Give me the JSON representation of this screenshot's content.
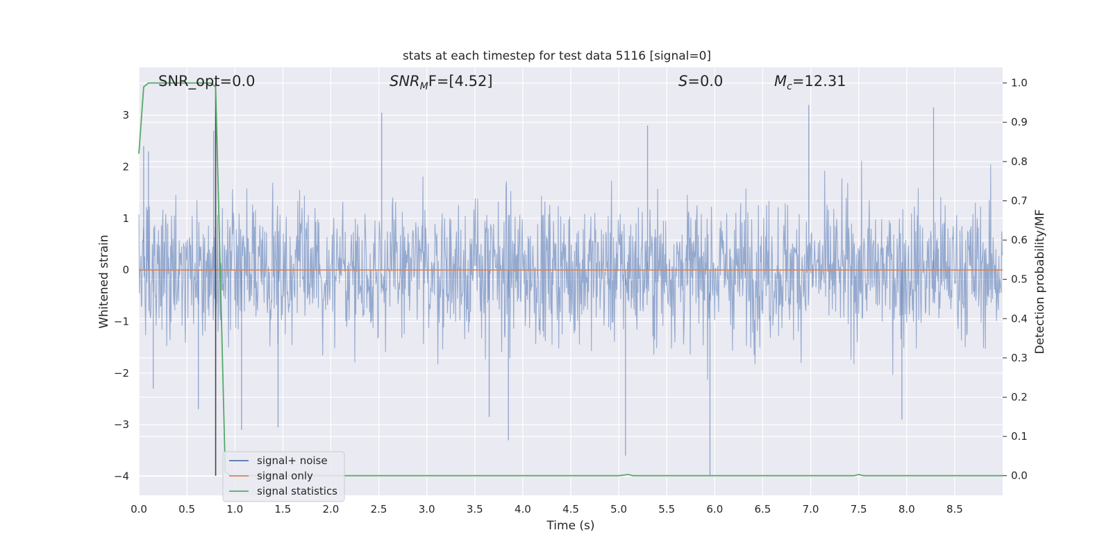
{
  "chart_data": {
    "type": "line",
    "title": "stats at each timestep for test data 5116 [signal=0]",
    "xlabel": "Time (s)",
    "ylabel": "Whitened strain",
    "y2label": "Detection probability/MF",
    "xlim": [
      0.0,
      9.0
    ],
    "ylim": [
      -4.37,
      3.93
    ],
    "y2lim": [
      -0.05,
      1.04
    ],
    "x_ticks": [
      "0.0",
      "0.5",
      "1.0",
      "1.5",
      "2.0",
      "2.5",
      "3.0",
      "3.5",
      "4.0",
      "4.5",
      "5.0",
      "5.5",
      "6.0",
      "6.5",
      "7.0",
      "7.5",
      "8.0",
      "8.5"
    ],
    "y_ticks": [
      "3",
      "2",
      "1",
      "0",
      "−1",
      "−2",
      "−3",
      "−4"
    ],
    "y2_ticks": [
      "1.0",
      "0.9",
      "0.8",
      "0.7",
      "0.6",
      "0.5",
      "0.4",
      "0.3",
      "0.2",
      "0.1",
      "0.0"
    ],
    "grid": true,
    "legend_position": "lower-left",
    "annotations": {
      "snr_opt": "SNR_opt=0.0",
      "snr_mf_base": "SNR",
      "snr_mf_sub": "M",
      "snr_mf_rest": "F=[4.52]",
      "s_base": "S",
      "s_rest": "=0.0",
      "mc_base": "M",
      "mc_sub": "c",
      "mc_rest": "=12.31"
    },
    "series": [
      {
        "name": "signal+ noise",
        "color": "#4c72b0",
        "description_units": "whitened strain, dense noise roughly within ±1.5 with peaks to about ±3",
        "notable_peaks": [
          {
            "x": 0.05,
            "y": 2.4
          },
          {
            "x": 0.1,
            "y": 2.3
          },
          {
            "x": 0.15,
            "y": -2.3
          },
          {
            "x": 0.78,
            "y": 2.7
          },
          {
            "x": 0.62,
            "y": -2.7
          },
          {
            "x": 1.07,
            "y": -3.1
          },
          {
            "x": 1.45,
            "y": -3.05
          },
          {
            "x": 2.53,
            "y": 3.05
          },
          {
            "x": 3.65,
            "y": -2.85
          },
          {
            "x": 3.85,
            "y": -3.3
          },
          {
            "x": 5.07,
            "y": -3.6
          },
          {
            "x": 5.3,
            "y": 2.8
          },
          {
            "x": 5.95,
            "y": -4.0
          },
          {
            "x": 6.98,
            "y": 3.2
          },
          {
            "x": 8.28,
            "y": 3.15
          },
          {
            "x": 7.95,
            "y": -2.9
          }
        ]
      },
      {
        "name": "signal only",
        "color": "#dd8452",
        "x": [
          0.0,
          9.0
        ],
        "y": [
          0.0,
          0.0
        ]
      },
      {
        "name": "signal statistics",
        "color": "#55a868",
        "axis": "right",
        "x": [
          0.0,
          0.05,
          0.1,
          0.15,
          0.5,
          0.75,
          0.8,
          0.85,
          0.9,
          0.95,
          5.0,
          5.1,
          5.15,
          7.0,
          7.45,
          7.5,
          7.55,
          9.0
        ],
        "y": [
          0.82,
          0.99,
          1.0,
          1.0,
          1.0,
          1.0,
          0.99,
          0.5,
          0.01,
          0.0,
          0.0,
          0.003,
          0.0,
          0.0,
          0.0,
          0.003,
          0.0,
          0.0
        ]
      }
    ],
    "vertical_marker": {
      "x": 0.8,
      "color": "#444444"
    }
  }
}
